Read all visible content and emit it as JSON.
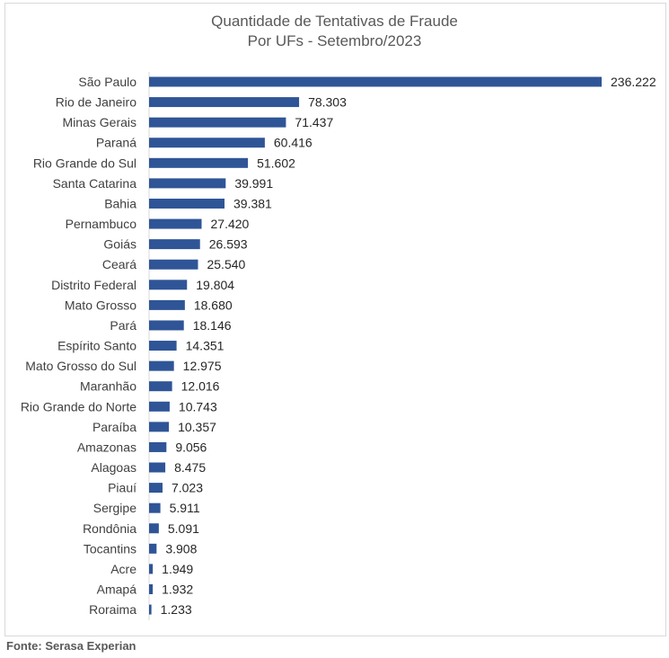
{
  "chart_data": {
    "type": "bar",
    "orientation": "horizontal",
    "title_lines": [
      "Quantidade de Tentativas de Fraude",
      "Por UFs - Setembro/2023"
    ],
    "categories": [
      "São Paulo",
      "Rio de Janeiro",
      "Minas Gerais",
      "Paraná",
      "Rio Grande do Sul",
      "Santa Catarina",
      "Bahia",
      "Pernambuco",
      "Goiás",
      "Ceará",
      "Distrito Federal",
      "Mato Grosso",
      "Pará",
      "Espírito Santo",
      "Mato Grosso do Sul",
      "Maranhão",
      "Rio Grande do Norte",
      "Paraíba",
      "Amazonas",
      "Alagoas",
      "Piauí",
      "Sergipe",
      "Rondônia",
      "Tocantins",
      "Acre",
      "Amapá",
      "Roraima"
    ],
    "values": [
      236222,
      78303,
      71437,
      60416,
      51602,
      39991,
      39381,
      27420,
      26593,
      25540,
      19804,
      18680,
      18146,
      14351,
      12975,
      12016,
      10743,
      10357,
      9056,
      8475,
      7023,
      5911,
      5091,
      3908,
      1949,
      1932,
      1233
    ],
    "value_labels": [
      "236.222",
      "78.303",
      "71.437",
      "60.416",
      "51.602",
      "39.991",
      "39.381",
      "27.420",
      "26.593",
      "25.540",
      "19.804",
      "18.680",
      "18.146",
      "14.351",
      "12.975",
      "12.016",
      "10.743",
      "10.357",
      "9.056",
      "8.475",
      "7.023",
      "5.911",
      "5.091",
      "3.908",
      "1.949",
      "1.932",
      "1.233"
    ],
    "bar_color": "#2f5597",
    "xlim": [
      0,
      236222
    ],
    "grid": false,
    "legend": "none"
  },
  "source": "Fonte: Serasa Experian"
}
